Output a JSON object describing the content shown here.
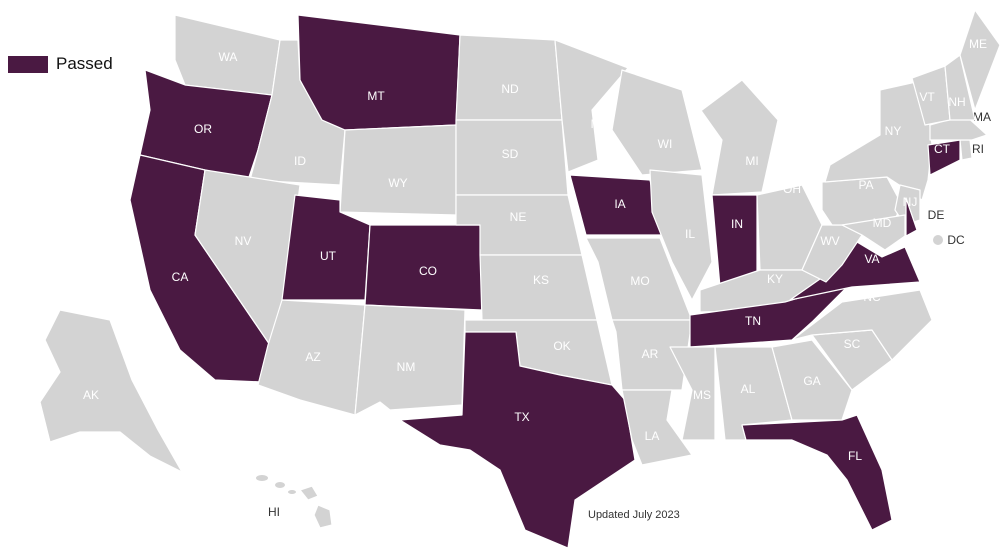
{
  "legend": {
    "label": "Passed",
    "color": "#4a1942"
  },
  "colors": {
    "passed": "#4a1942",
    "other": "#d3d3d3",
    "label_inside": "#ffffff",
    "label_outside": "#333333"
  },
  "note": "Updated July 2023",
  "states": [
    {
      "code": "WA",
      "passed": false
    },
    {
      "code": "OR",
      "passed": true
    },
    {
      "code": "CA",
      "passed": true
    },
    {
      "code": "ID",
      "passed": false
    },
    {
      "code": "NV",
      "passed": false
    },
    {
      "code": "MT",
      "passed": true
    },
    {
      "code": "WY",
      "passed": false
    },
    {
      "code": "UT",
      "passed": true
    },
    {
      "code": "CO",
      "passed": true
    },
    {
      "code": "AZ",
      "passed": false
    },
    {
      "code": "NM",
      "passed": false
    },
    {
      "code": "ND",
      "passed": false
    },
    {
      "code": "SD",
      "passed": false
    },
    {
      "code": "NE",
      "passed": false
    },
    {
      "code": "KS",
      "passed": false
    },
    {
      "code": "OK",
      "passed": false
    },
    {
      "code": "TX",
      "passed": true
    },
    {
      "code": "MN",
      "passed": false
    },
    {
      "code": "IA",
      "passed": true
    },
    {
      "code": "MO",
      "passed": false
    },
    {
      "code": "AR",
      "passed": false
    },
    {
      "code": "LA",
      "passed": false
    },
    {
      "code": "WI",
      "passed": false
    },
    {
      "code": "IL",
      "passed": false
    },
    {
      "code": "MI",
      "passed": false
    },
    {
      "code": "IN",
      "passed": true
    },
    {
      "code": "OH",
      "passed": false
    },
    {
      "code": "KY",
      "passed": false
    },
    {
      "code": "TN",
      "passed": true
    },
    {
      "code": "MS",
      "passed": false
    },
    {
      "code": "AL",
      "passed": false
    },
    {
      "code": "GA",
      "passed": false
    },
    {
      "code": "FL",
      "passed": true
    },
    {
      "code": "SC",
      "passed": false
    },
    {
      "code": "NC",
      "passed": false
    },
    {
      "code": "VA",
      "passed": true
    },
    {
      "code": "WV",
      "passed": false
    },
    {
      "code": "PA",
      "passed": false
    },
    {
      "code": "NY",
      "passed": false
    },
    {
      "code": "NJ",
      "passed": false
    },
    {
      "code": "DE",
      "passed": true
    },
    {
      "code": "MD",
      "passed": false
    },
    {
      "code": "CT",
      "passed": true
    },
    {
      "code": "RI",
      "passed": false
    },
    {
      "code": "MA",
      "passed": false
    },
    {
      "code": "VT",
      "passed": false
    },
    {
      "code": "NH",
      "passed": false
    },
    {
      "code": "ME",
      "passed": false
    },
    {
      "code": "AK",
      "passed": false
    },
    {
      "code": "HI",
      "passed": false
    },
    {
      "code": "DC",
      "passed": false
    }
  ]
}
